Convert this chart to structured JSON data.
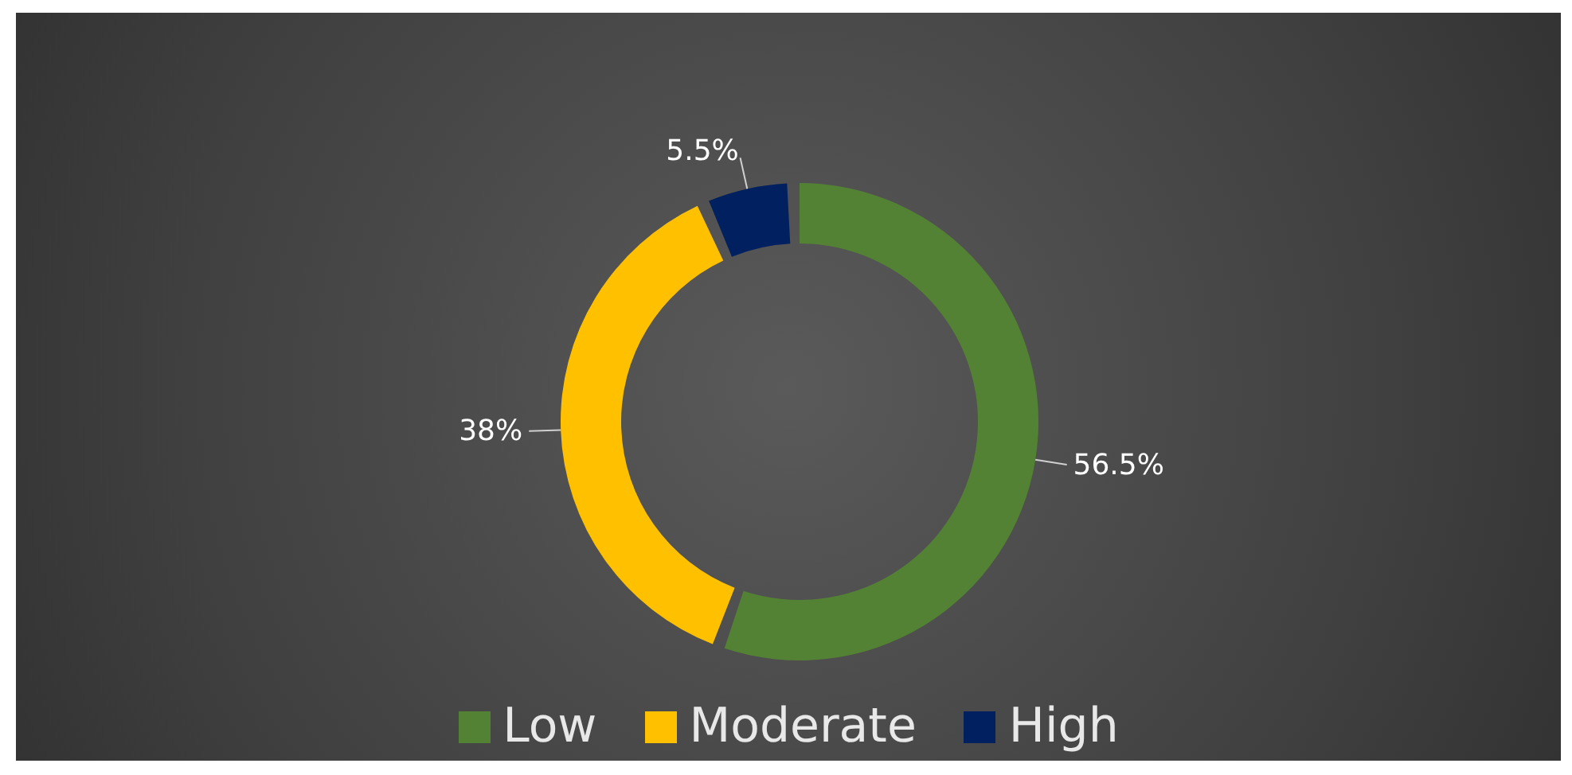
{
  "chart_data": {
    "type": "donut",
    "categories": [
      "Low",
      "Moderate",
      "High"
    ],
    "values": [
      56.5,
      38,
      5.5
    ],
    "colors": [
      "#548235",
      "#ffc000",
      "#002060"
    ],
    "value_labels": [
      "56.5%",
      "38%",
      "5.5%"
    ],
    "legend": "bottom"
  }
}
